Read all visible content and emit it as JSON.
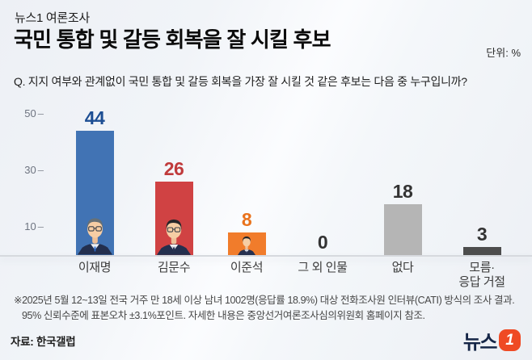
{
  "header": {
    "kicker": "뉴스1 여론조사",
    "title": "국민 통합 및 갈등 회복을 잘 시킬 후보",
    "unit_label": "단위: %",
    "question": "Q. 지지 여부와 관계없이 국민 통합 및 갈등 회복을 가장 잘 시킬 것 같은 후보는 다음 중 누구입니까?"
  },
  "chart_data": {
    "type": "bar",
    "title": "국민 통합 및 갈등 회복을 잘 시킬 후보",
    "unit": "%",
    "categories": [
      "이재명",
      "김문수",
      "이준석",
      "그 외 인물",
      "없다",
      "모름·응답 거절"
    ],
    "display_labels": [
      "이재명",
      "김문수",
      "이준석",
      "그 외 인물",
      "없다",
      "모름·\n응답 거절"
    ],
    "values": [
      44,
      26,
      8,
      0,
      18,
      3
    ],
    "bar_colors": [
      "#4173b4",
      "#d04243",
      "#f17c2b",
      null,
      "#b5b5b5",
      "#4d4d4d"
    ],
    "value_colors": [
      "#1d4e93",
      "#c03a3b",
      "#e9731d",
      "#333333",
      "#333333",
      "#333333"
    ],
    "has_photo": [
      true,
      true,
      true,
      false,
      false,
      false
    ],
    "yticks": [
      50,
      30,
      10
    ],
    "ylim": [
      0,
      52
    ],
    "grid": false,
    "legend": null
  },
  "footnote": {
    "line1": "※2025년 5월 12~13일 전국 거주 만 18세 이상 남녀 1002명(응답률 18.9%) 대상 전화조사원 인터뷰(CATI) 방식의 조사 결과.",
    "line2": "95% 신뢰수준에 표본오차 ±3.1%포인트. 자세한 내용은 중앙선거여론조사심의위원회 홈페이지 참조.",
    "source": "자료: 한국갤럽"
  },
  "logo": {
    "wordmark": "뉴스",
    "numeral": "1",
    "navy": "#152647",
    "orange": "#ef4a24"
  }
}
